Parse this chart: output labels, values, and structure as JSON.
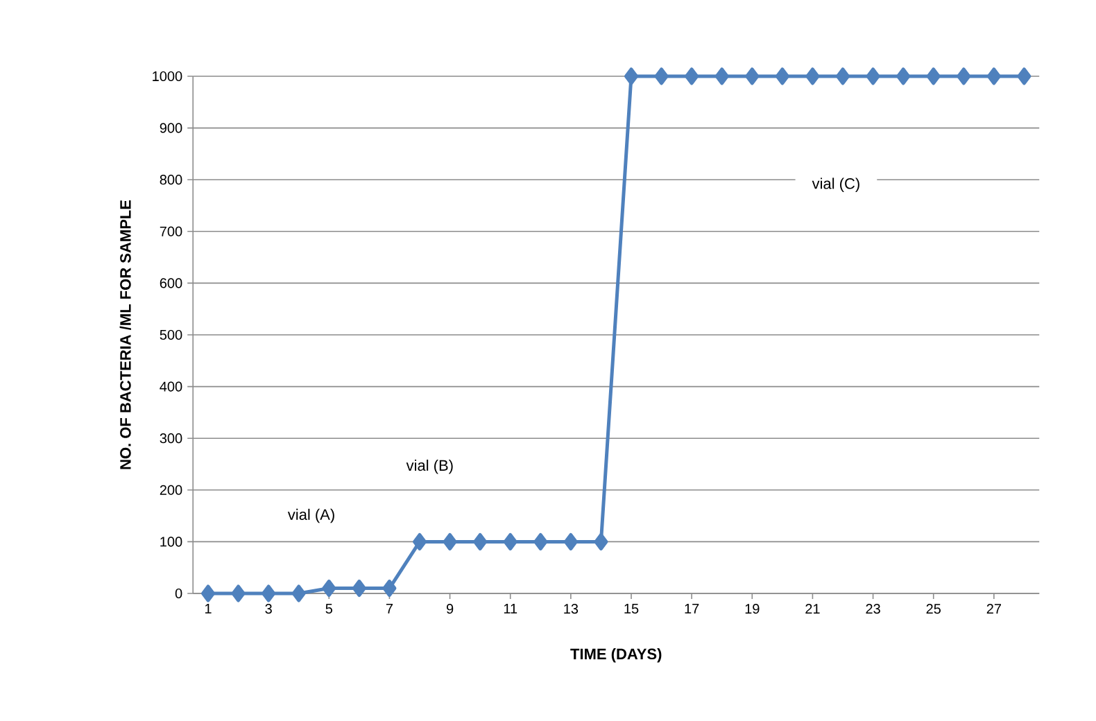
{
  "chart_data": {
    "type": "line",
    "xlabel": "TIME (DAYS)",
    "ylabel": "NO. OF BACTERIA /ML FOR SAMPLE",
    "categories": [
      "1",
      null,
      "3",
      null,
      "5",
      null,
      "7",
      null,
      "9",
      null,
      "11",
      null,
      "13",
      null,
      "15",
      null,
      "17",
      null,
      "19",
      null,
      "21",
      null,
      "23",
      null,
      "25",
      null,
      "27",
      null
    ],
    "series": [
      {
        "color": "#4f81bd",
        "values": [
          0,
          0,
          0,
          0,
          10,
          10,
          10,
          100,
          100,
          100,
          100,
          100,
          100,
          100,
          1000,
          1000,
          1000,
          1000,
          1000,
          1000,
          1000,
          1000,
          1000,
          1000,
          1000,
          1000,
          1000,
          1000
        ]
      }
    ],
    "ylim": [
      0,
      1000
    ],
    "yticks": [
      0,
      100,
      200,
      300,
      400,
      500,
      600,
      700,
      800,
      900,
      1000
    ],
    "grid": "y",
    "marker": "diamond",
    "line_style": "solid",
    "annotations": [
      "vial (A)",
      "vial (B)",
      "vial (C)"
    ]
  }
}
